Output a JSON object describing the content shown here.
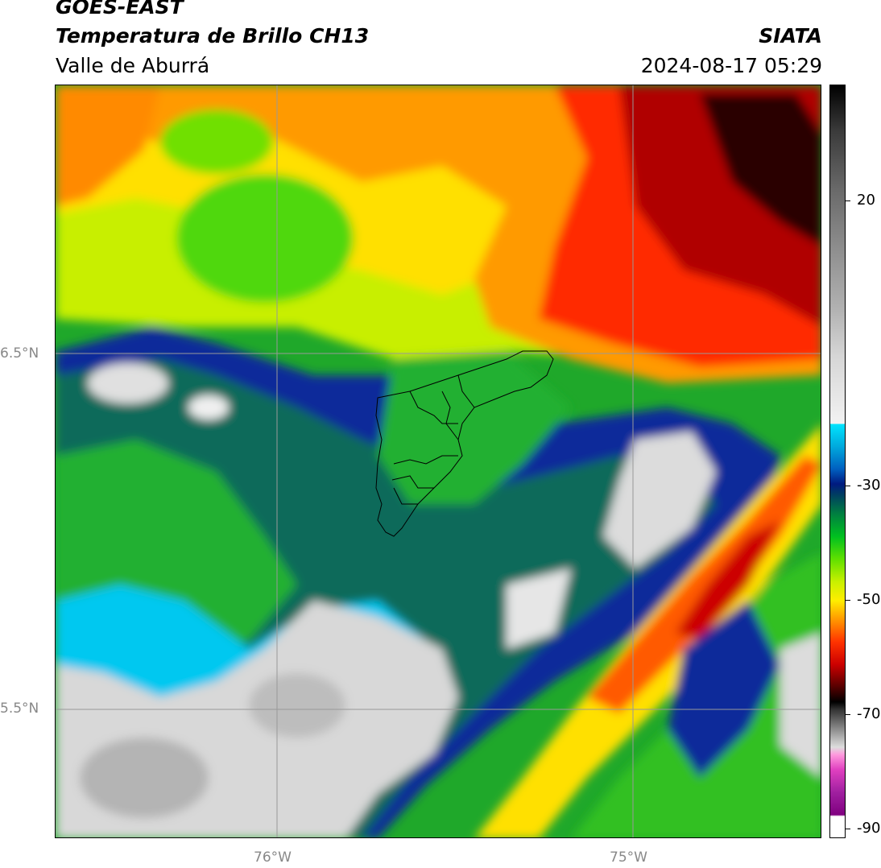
{
  "header": {
    "satellite": "GOES-EAST",
    "product": "Temperatura de Brillo CH13",
    "region": "Valle de Aburrá",
    "organization": "SIATA",
    "datetime": "2024-08-17 05:29"
  },
  "axes": {
    "lat_labels": [
      "6.5°N",
      "5.5°N"
    ],
    "lon_labels": [
      "76°W",
      "75°W"
    ]
  },
  "colorbar": {
    "ticks": [
      "20",
      "-30",
      "-50",
      "-70",
      "-90"
    ]
  }
}
